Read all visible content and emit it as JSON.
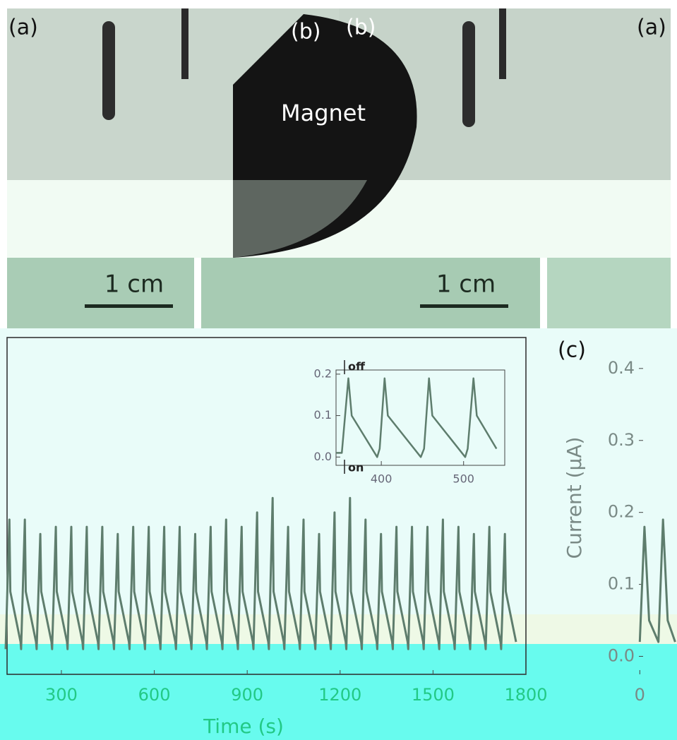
{
  "photos": {
    "labels": [
      "(a)",
      "(b)",
      "(b)",
      "(a)"
    ],
    "magnet": "Magnet",
    "scale_bars": [
      "1 cm",
      "1 cm"
    ]
  },
  "panel_c_label": "(c)",
  "chart_data": [
    {
      "type": "line",
      "xlabel": "Time (s)",
      "xlim": [
        120,
        1800
      ],
      "ylim": [
        -0.025,
        0.443
      ],
      "xticks": [
        300,
        600,
        900,
        1200,
        1500,
        1800
      ],
      "series": [
        {
          "color": "#5e7d6d",
          "x": [
            120,
            132,
            135,
            168,
            170,
            182,
            185,
            218,
            220,
            232,
            235,
            268,
            270,
            282,
            285,
            318,
            320,
            332,
            335,
            368,
            370,
            382,
            385,
            418,
            420,
            432,
            435,
            468,
            470,
            482,
            485,
            518,
            520,
            532,
            535,
            568,
            570,
            582,
            585,
            618,
            620,
            632,
            635,
            668,
            670,
            682,
            685,
            718,
            720,
            732,
            735,
            768,
            770,
            782,
            785,
            818,
            820,
            832,
            835,
            868,
            870,
            882,
            885,
            918,
            920,
            932,
            935,
            968,
            970,
            982,
            985,
            1018,
            1020,
            1032,
            1035,
            1068,
            1070,
            1082,
            1085,
            1118,
            1120,
            1132,
            1135,
            1168,
            1170,
            1182,
            1185,
            1218,
            1220,
            1232,
            1235,
            1268,
            1270,
            1282,
            1285,
            1318,
            1320,
            1332,
            1335,
            1368,
            1370,
            1382,
            1385,
            1418,
            1420,
            1432,
            1435,
            1468,
            1470,
            1482,
            1485,
            1518,
            1520,
            1532,
            1535,
            1568,
            1570,
            1582,
            1585,
            1618,
            1620,
            1632,
            1635,
            1668,
            1670,
            1682,
            1685,
            1718,
            1720,
            1732,
            1735,
            1768
          ],
          "values": [
            0.01,
            0.19,
            0.09,
            0.02,
            0.01,
            0.19,
            0.09,
            0.02,
            0.01,
            0.17,
            0.09,
            0.02,
            0.01,
            0.18,
            0.09,
            0.02,
            0.01,
            0.18,
            0.09,
            0.02,
            0.01,
            0.18,
            0.09,
            0.02,
            0.01,
            0.18,
            0.09,
            0.02,
            0.01,
            0.17,
            0.09,
            0.02,
            0.01,
            0.18,
            0.09,
            0.02,
            0.01,
            0.18,
            0.09,
            0.02,
            0.01,
            0.18,
            0.09,
            0.02,
            0.01,
            0.18,
            0.09,
            0.02,
            0.01,
            0.17,
            0.09,
            0.02,
            0.01,
            0.18,
            0.09,
            0.02,
            0.01,
            0.19,
            0.09,
            0.02,
            0.01,
            0.18,
            0.09,
            0.02,
            0.01,
            0.2,
            0.09,
            0.02,
            0.01,
            0.22,
            0.09,
            0.02,
            0.01,
            0.18,
            0.09,
            0.02,
            0.01,
            0.19,
            0.09,
            0.02,
            0.01,
            0.17,
            0.09,
            0.02,
            0.01,
            0.2,
            0.09,
            0.02,
            0.01,
            0.22,
            0.09,
            0.02,
            0.01,
            0.19,
            0.09,
            0.02,
            0.01,
            0.17,
            0.09,
            0.02,
            0.01,
            0.18,
            0.09,
            0.02,
            0.01,
            0.18,
            0.09,
            0.02,
            0.01,
            0.18,
            0.09,
            0.02,
            0.01,
            0.19,
            0.09,
            0.02,
            0.01,
            0.18,
            0.09,
            0.02,
            0.01,
            0.17,
            0.09,
            0.02,
            0.01,
            0.18,
            0.09,
            0.02,
            0.01,
            0.17,
            0.09,
            0.02
          ]
        }
      ]
    },
    {
      "type": "line",
      "annotations": [
        "off",
        "on"
      ],
      "xlim": [
        345,
        550
      ],
      "ylim": [
        -0.02,
        0.21
      ],
      "xticks": [
        400,
        500
      ],
      "yticks": [
        {
          "value": 0,
          "label": "0.0"
        },
        {
          "value": 0.1,
          "label": "0.1"
        },
        {
          "value": 0.2,
          "label": "0.2"
        }
      ],
      "series": [
        {
          "color": "#5e7d6d",
          "x": [
            345,
            352,
            360,
            364,
            395,
            398,
            404,
            408,
            448,
            452,
            458,
            462,
            502,
            505,
            512,
            516,
            540
          ],
          "values": [
            0.01,
            0.01,
            0.19,
            0.1,
            0.0,
            0.02,
            0.19,
            0.1,
            0.0,
            0.02,
            0.19,
            0.1,
            0.0,
            0.02,
            0.19,
            0.1,
            0.02
          ]
        }
      ]
    },
    {
      "type": "line",
      "ylabel": "Current (μA)",
      "xlim": [
        -1,
        40
      ],
      "ylim": [
        -0.025,
        0.443
      ],
      "xticks": [
        0
      ],
      "yticks": [
        {
          "value": 0,
          "label": "0.0"
        },
        {
          "value": 0.1,
          "label": "0.1"
        },
        {
          "value": 0.2,
          "label": "0.2"
        },
        {
          "value": 0.3,
          "label": "0.3"
        },
        {
          "value": 0.4,
          "label": "0.4"
        }
      ],
      "series": [
        {
          "color": "#5e7d6d",
          "x": [
            0,
            5,
            10,
            20,
            25,
            30,
            38
          ],
          "values": [
            0.02,
            0.18,
            0.05,
            0.02,
            0.19,
            0.05,
            0.02
          ]
        }
      ]
    }
  ]
}
